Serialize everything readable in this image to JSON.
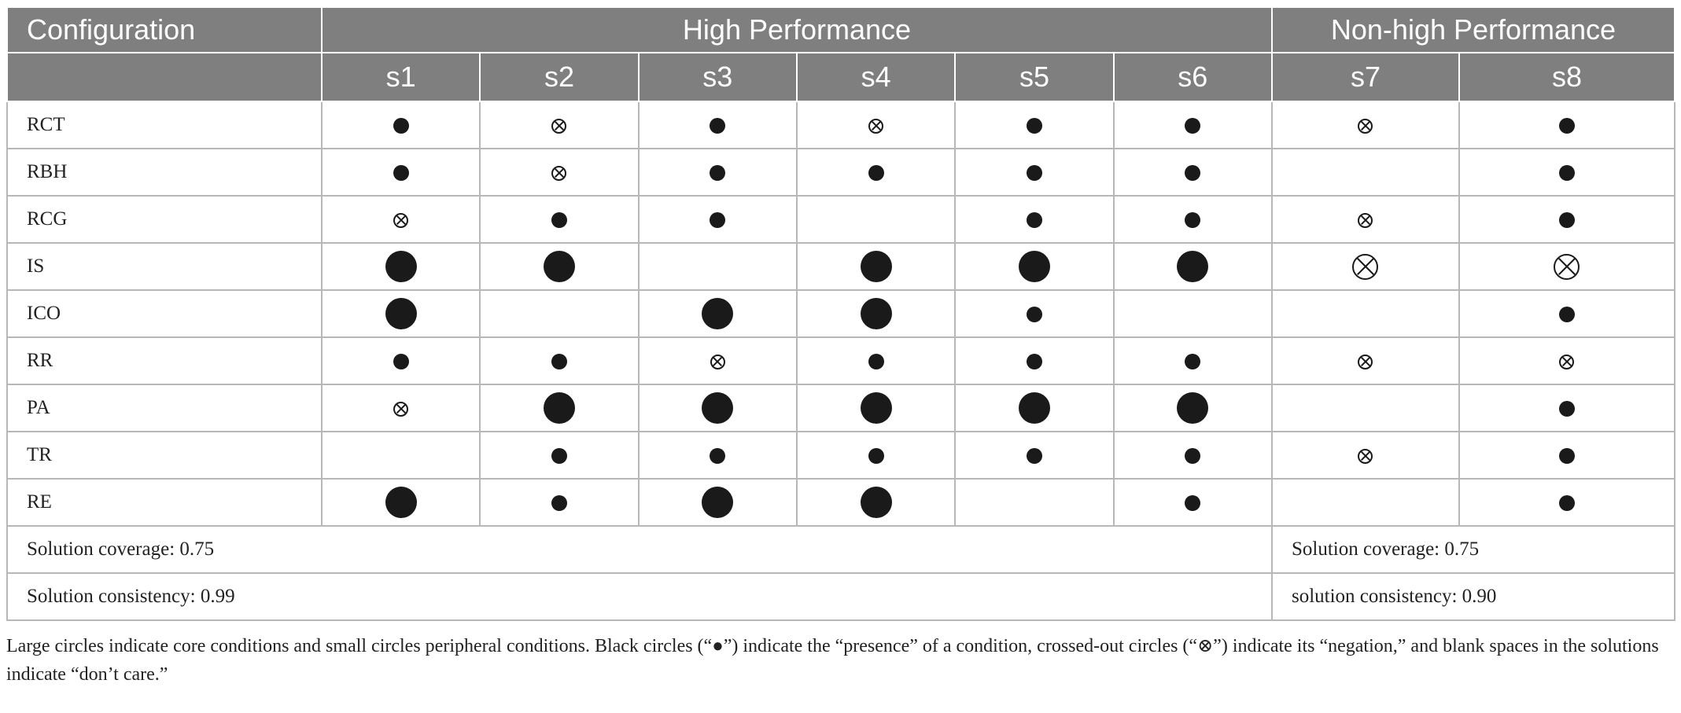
{
  "header": {
    "configuration_label": "Configuration",
    "group_high": "High Performance",
    "group_nonhigh": "Non-high Performance",
    "solutions": [
      "s1",
      "s2",
      "s3",
      "s4",
      "s5",
      "s6",
      "s7",
      "s8"
    ]
  },
  "legend_symbols": {
    "presence_peripheral": "●",
    "presence_core": "●",
    "negation_peripheral": "⊗",
    "negation_core": "⊗",
    "dont_care": ""
  },
  "rows": [
    {
      "label": "RCT",
      "cells": [
        "P",
        "N",
        "P",
        "N",
        "P",
        "P",
        "N",
        "P"
      ]
    },
    {
      "label": "RBH",
      "cells": [
        "P",
        "N",
        "P",
        "P",
        "P",
        "P",
        "",
        "P"
      ]
    },
    {
      "label": "RCG",
      "cells": [
        "N",
        "P",
        "P",
        "",
        "P",
        "P",
        "N",
        "P"
      ]
    },
    {
      "label": "IS",
      "cells": [
        "C",
        "C",
        "",
        "C",
        "C",
        "C",
        "NC",
        "NC"
      ]
    },
    {
      "label": "ICO",
      "cells": [
        "C",
        "",
        "C",
        "C",
        "P",
        "",
        "",
        "P"
      ]
    },
    {
      "label": "RR",
      "cells": [
        "P",
        "P",
        "N",
        "P",
        "P",
        "P",
        "N",
        "N"
      ]
    },
    {
      "label": "PA",
      "cells": [
        "N",
        "C",
        "C",
        "C",
        "C",
        "C",
        "",
        "P"
      ]
    },
    {
      "label": "TR",
      "cells": [
        "",
        "P",
        "P",
        "P",
        "P",
        "P",
        "N",
        "P"
      ]
    },
    {
      "label": "RE",
      "cells": [
        "C",
        "P",
        "C",
        "C",
        "",
        "P",
        "",
        "P"
      ]
    }
  ],
  "footer": {
    "high_coverage": "Solution coverage: 0.75",
    "high_consistency": "Solution consistency: 0.99",
    "nonhigh_coverage": "Solution coverage: 0.75",
    "nonhigh_consistency": "solution consistency: 0.90"
  },
  "note": "Large circles indicate core conditions and small circles peripheral conditions. Black circles (“●”) indicate the “presence” of a condition, crossed-out circles (“⊗”) indicate its “negation,” and blank spaces in the solutions indicate “don’t care.”"
}
